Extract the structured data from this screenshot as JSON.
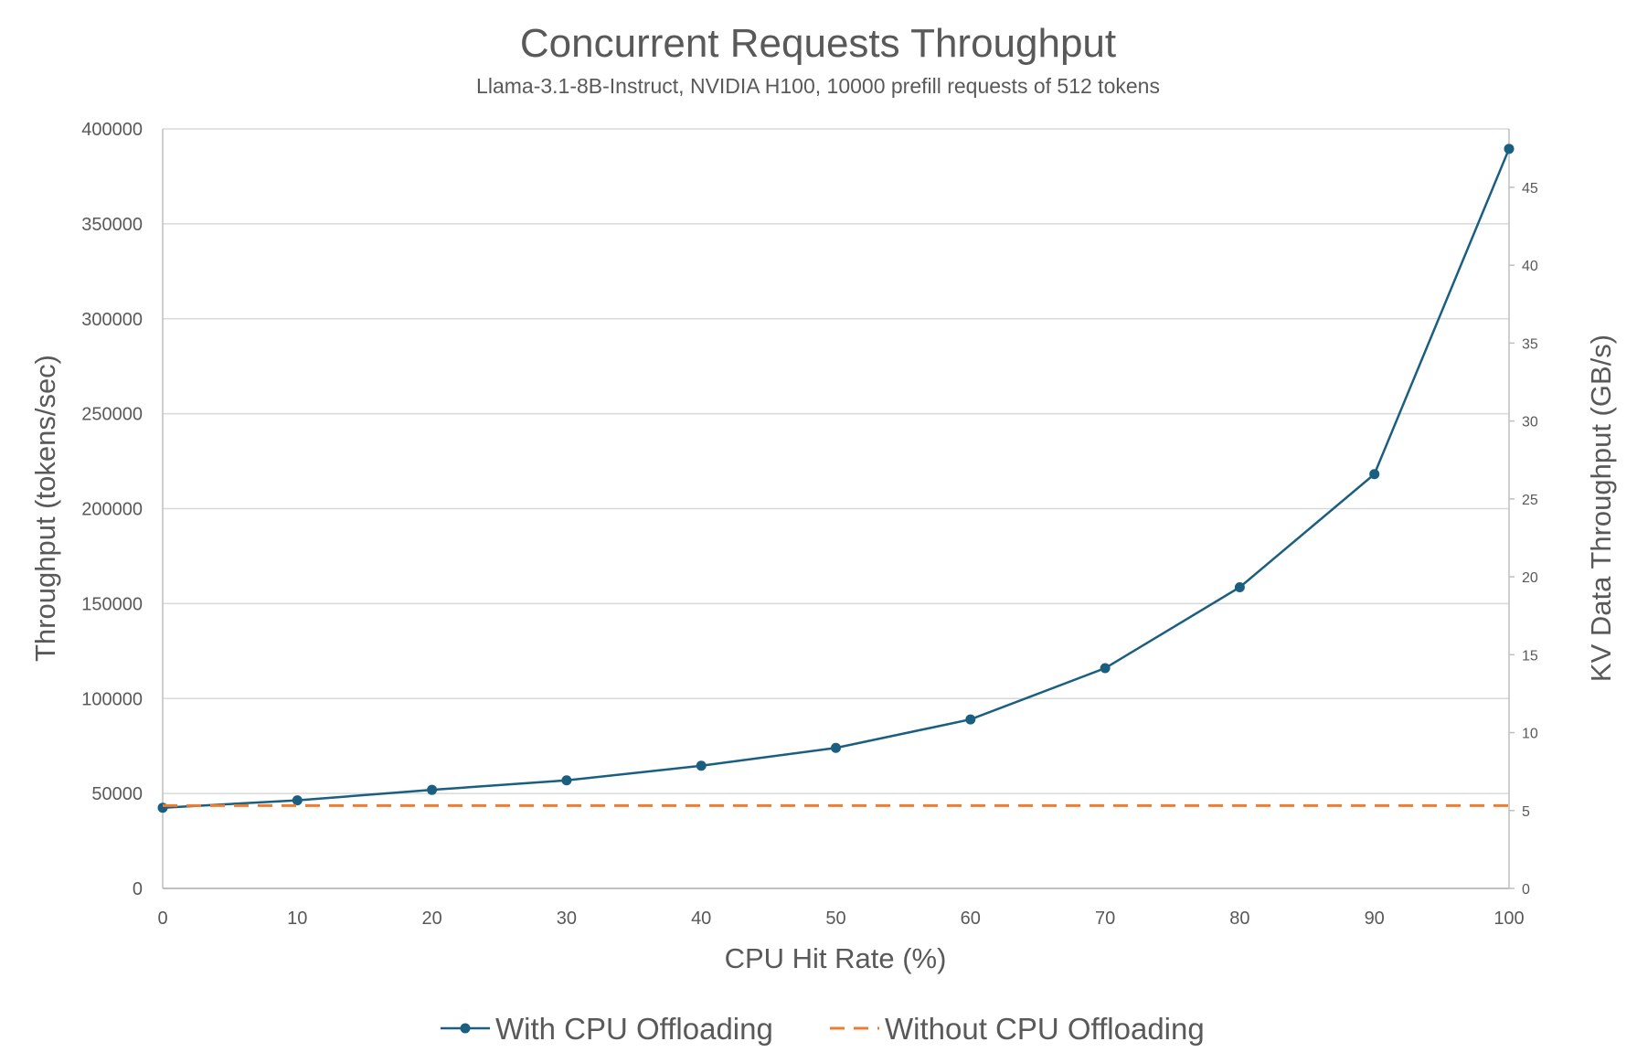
{
  "chart_data": {
    "type": "line",
    "title": "Concurrent Requests Throughput",
    "subtitle": "Llama-3.1-8B-Instruct, NVIDIA H100, 10000 prefill requests of 512 tokens",
    "xlabel": "CPU Hit Rate (%)",
    "ylabel": "Throughput (tokens/sec)",
    "y2label": "KV Data Throughput (GB/s)",
    "x": [
      0,
      10,
      20,
      30,
      40,
      50,
      60,
      70,
      80,
      90,
      100
    ],
    "xlim": [
      0,
      100
    ],
    "ylim": [
      0,
      400000
    ],
    "y2lim": [
      0,
      48.75
    ],
    "yticks": [
      0,
      50000,
      100000,
      150000,
      200000,
      250000,
      300000,
      350000,
      400000
    ],
    "y2ticks": [
      0,
      5,
      10,
      15,
      20,
      25,
      30,
      35,
      40,
      45
    ],
    "grid": true,
    "legend_position": "bottom",
    "series": [
      {
        "name": "With CPU Offloading",
        "color": "#1a5e80",
        "style": "solid",
        "marker": "circle",
        "values": [
          42500,
          46400,
          51900,
          56900,
          64600,
          74000,
          89000,
          116000,
          158600,
          218200,
          389500
        ]
      },
      {
        "name": "Without CPU Offloading",
        "color": "#ed7d31",
        "style": "dashed",
        "marker": "none",
        "values": [
          43600,
          43600,
          43600,
          43600,
          43600,
          43600,
          43600,
          43600,
          43600,
          43600,
          43600
        ]
      }
    ]
  }
}
